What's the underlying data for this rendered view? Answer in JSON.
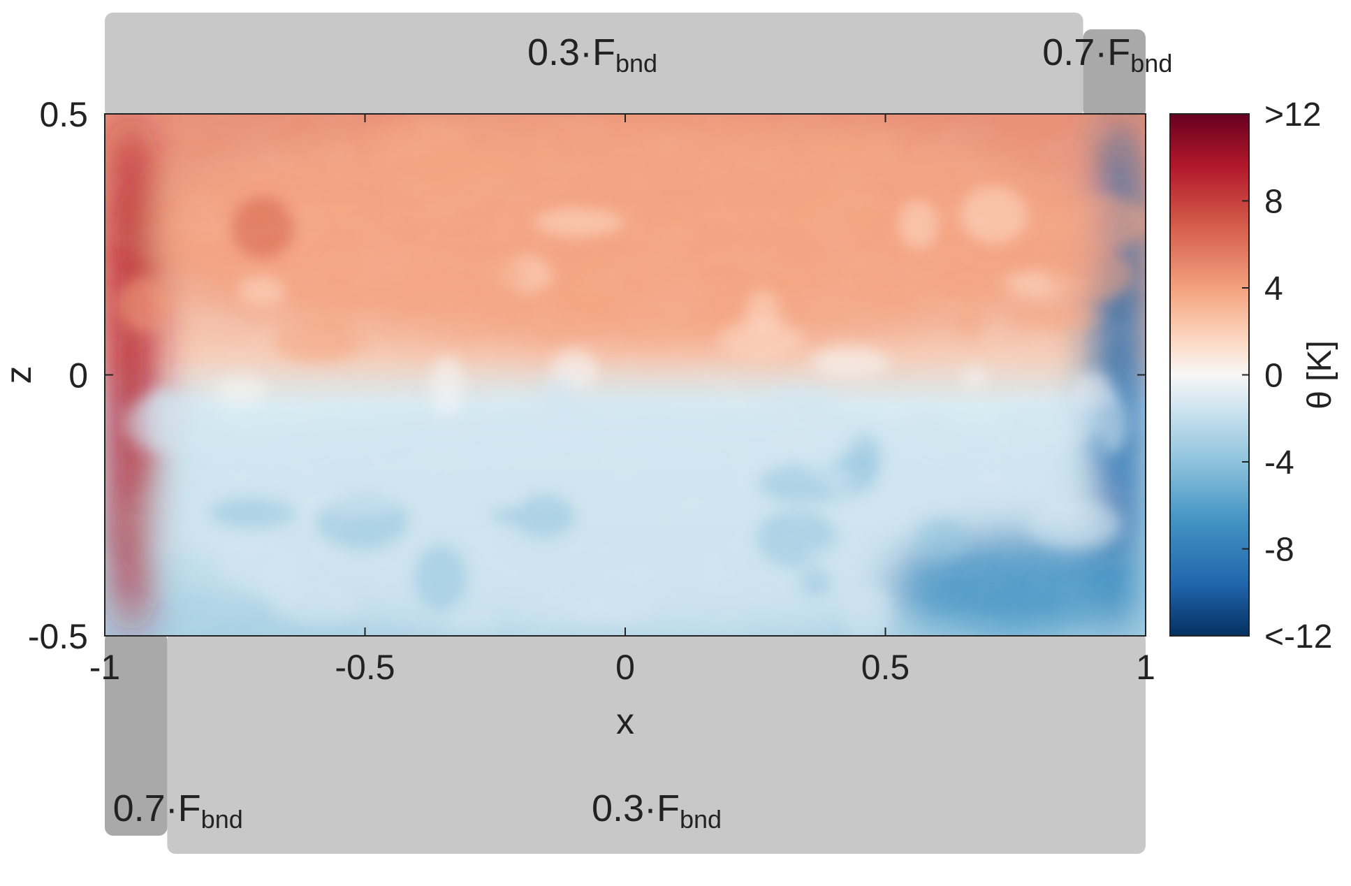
{
  "chart_data": {
    "type": "heatmap",
    "title": "",
    "xlabel": "x",
    "ylabel": "z",
    "xlim": [
      -1,
      1
    ],
    "ylim": [
      -0.5,
      0.5
    ],
    "x_ticks": [
      -1,
      -0.5,
      0,
      0.5,
      1
    ],
    "x_tick_labels": [
      "-1",
      "-0.5",
      "0",
      "0.5",
      "1"
    ],
    "y_ticks": [
      -0.5,
      0,
      0.5
    ],
    "y_tick_labels": [
      "-0.5",
      "0",
      "0.5"
    ],
    "colorbar": {
      "label": "θ [K]",
      "range": [
        -12,
        12
      ],
      "ticks": [
        12,
        8,
        4,
        0,
        -4,
        -8,
        -12
      ],
      "tick_labels": [
        ">12",
        "8",
        "4",
        "0",
        "-4",
        "-8",
        "<-12"
      ],
      "colormap": [
        "#67001f",
        "#b2182b",
        "#d6604d",
        "#f4a582",
        "#fddbc7",
        "#f7f7f7",
        "#d1e5f0",
        "#92c5de",
        "#4393c3",
        "#2166ac",
        "#053061"
      ]
    },
    "field_regions": [
      {
        "desc": "warm upper layer",
        "x": [
          -0.9,
          0.9
        ],
        "z": [
          0.05,
          0.5
        ],
        "theta": 4
      },
      {
        "desc": "cool lower layer",
        "x": [
          -0.9,
          0.9
        ],
        "z": [
          -0.5,
          -0.05
        ],
        "theta": -3
      },
      {
        "desc": "hot plume at left wall",
        "x": [
          -1,
          -0.9
        ],
        "z": [
          -0.5,
          0.5
        ],
        "theta": 10
      },
      {
        "desc": "cold plume at right wall",
        "x": [
          0.9,
          1
        ],
        "z": [
          -0.5,
          0.5
        ],
        "theta": -10
      },
      {
        "desc": "cold pool lower right",
        "x": [
          0.5,
          1
        ],
        "z": [
          -0.5,
          -0.3
        ],
        "theta": -7
      }
    ],
    "boundary_annotations": {
      "top_main": {
        "coef": "0.3·F",
        "sub": "bnd",
        "x_range": [
          -1,
          0.88
        ]
      },
      "top_corner": {
        "coef": "0.7·F",
        "sub": "bnd",
        "x_range": [
          0.88,
          1
        ]
      },
      "bottom_corner": {
        "coef": "0.7·F",
        "sub": "bnd",
        "x_range": [
          -1,
          -0.88
        ]
      },
      "bottom_main": {
        "coef": "0.3·F",
        "sub": "bnd",
        "x_range": [
          -0.88,
          1
        ]
      }
    }
  }
}
